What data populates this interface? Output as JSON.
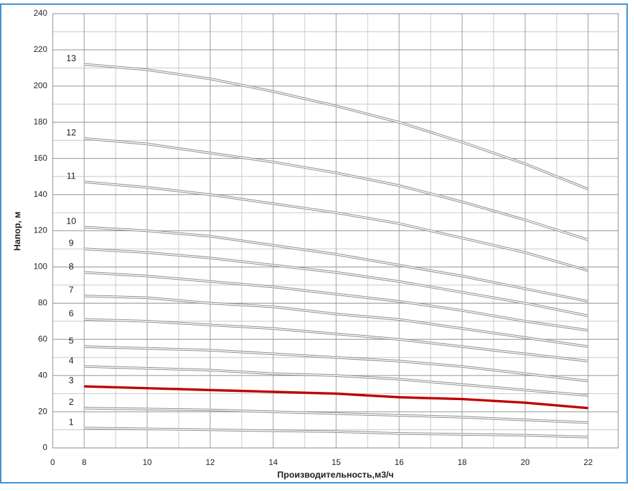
{
  "chart_data": {
    "type": "line",
    "y_label": "Напор, м",
    "x_label": "Производительность,м3/ч",
    "ylim": [
      0,
      240
    ],
    "yticks": [
      0,
      20,
      40,
      60,
      80,
      100,
      120,
      140,
      160,
      180,
      200,
      220,
      240
    ],
    "xlim": [
      0,
      22
    ],
    "xticks": [
      0,
      8,
      10,
      12,
      14,
      15,
      16,
      18,
      20,
      22
    ],
    "grid": true,
    "x": [
      8,
      10,
      12,
      14,
      15,
      16,
      18,
      20,
      22
    ],
    "series": [
      {
        "name": "1",
        "color": "#ffffff",
        "values": [
          11,
          10.5,
          10,
          9.5,
          9,
          8,
          7.5,
          7,
          6
        ]
      },
      {
        "name": "2",
        "color": "#ffffff",
        "values": [
          22,
          21.5,
          21,
          20,
          19,
          18,
          17,
          15.5,
          14
        ]
      },
      {
        "name": "3",
        "color": "#c00000",
        "values": [
          34,
          33,
          32,
          31,
          30,
          28,
          27,
          25,
          22
        ]
      },
      {
        "name": "4",
        "color": "#ffffff",
        "values": [
          45,
          44,
          43,
          41,
          40,
          38,
          35,
          32,
          29
        ]
      },
      {
        "name": "5",
        "color": "#ffffff",
        "values": [
          56,
          55,
          54,
          52,
          50,
          48,
          45,
          41,
          37
        ]
      },
      {
        "name": "6",
        "color": "#ffffff",
        "values": [
          71,
          70,
          68,
          66,
          63,
          60,
          56,
          52,
          48
        ]
      },
      {
        "name": "7",
        "color": "#ffffff",
        "values": [
          84,
          83,
          80,
          78,
          74,
          71,
          66,
          61,
          56
        ]
      },
      {
        "name": "8",
        "color": "#ffffff",
        "values": [
          97,
          95,
          92,
          89,
          85,
          81,
          76,
          70,
          65
        ]
      },
      {
        "name": "9",
        "color": "#ffffff",
        "values": [
          110,
          108,
          105,
          101,
          97,
          92,
          86,
          80,
          73
        ]
      },
      {
        "name": "10",
        "color": "#ffffff",
        "values": [
          122,
          120,
          117,
          112,
          107,
          101,
          95,
          88,
          81
        ]
      },
      {
        "name": "11",
        "color": "#ffffff",
        "values": [
          147,
          144,
          140,
          135,
          130,
          124,
          116,
          108,
          98
        ]
      },
      {
        "name": "12",
        "color": "#ffffff",
        "values": [
          171,
          168,
          163,
          158,
          152,
          145,
          136,
          126,
          115
        ]
      },
      {
        "name": "13",
        "color": "#ffffff",
        "values": [
          212,
          209,
          204,
          197,
          189,
          180,
          169,
          157,
          143
        ]
      }
    ]
  }
}
